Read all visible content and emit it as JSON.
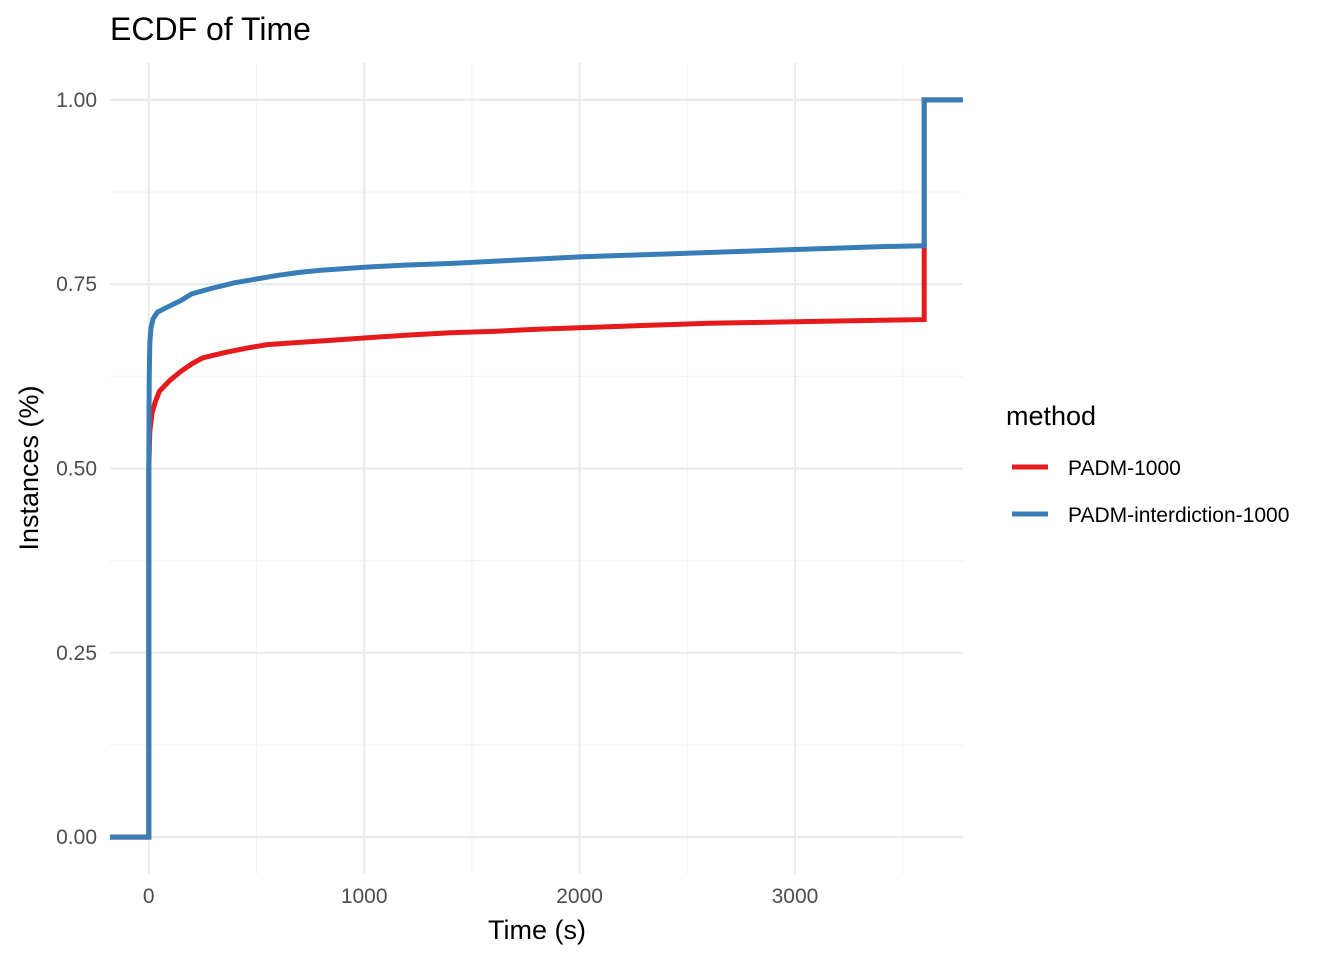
{
  "chart_data": {
    "type": "line",
    "subtype": "ecdf-step",
    "title": "ECDF of Time",
    "xlabel": "Time (s)",
    "ylabel": "Instances (%)",
    "xlim": [
      -180,
      3780
    ],
    "ylim": [
      -0.05,
      1.05
    ],
    "x_ticks": [
      0,
      1000,
      2000,
      3000
    ],
    "x_tick_labels": [
      "0",
      "1000",
      "2000",
      "3000"
    ],
    "y_ticks": [
      0,
      0.25,
      0.5,
      0.75,
      1.0
    ],
    "y_tick_labels": [
      "0.00",
      "0.25",
      "0.50",
      "0.75",
      "1.00"
    ],
    "grid": true,
    "legend": {
      "title": "method",
      "position": "right"
    },
    "series": [
      {
        "name": "PADM-1000",
        "color": "#e41a1c",
        "points": [
          [
            -180,
            0.0
          ],
          [
            0,
            0.0
          ],
          [
            0,
            0.5
          ],
          [
            5,
            0.55
          ],
          [
            15,
            0.575
          ],
          [
            30,
            0.59
          ],
          [
            50,
            0.605
          ],
          [
            100,
            0.62
          ],
          [
            150,
            0.632
          ],
          [
            200,
            0.642
          ],
          [
            250,
            0.65
          ],
          [
            350,
            0.657
          ],
          [
            450,
            0.663
          ],
          [
            550,
            0.668
          ],
          [
            700,
            0.671
          ],
          [
            850,
            0.674
          ],
          [
            1000,
            0.677
          ],
          [
            1200,
            0.681
          ],
          [
            1400,
            0.684
          ],
          [
            1600,
            0.686
          ],
          [
            1800,
            0.689
          ],
          [
            2000,
            0.691
          ],
          [
            2200,
            0.693
          ],
          [
            2400,
            0.695
          ],
          [
            2600,
            0.697
          ],
          [
            2800,
            0.698
          ],
          [
            3000,
            0.699
          ],
          [
            3200,
            0.7
          ],
          [
            3400,
            0.701
          ],
          [
            3600,
            0.702
          ],
          [
            3600,
            1.0
          ],
          [
            3780,
            1.0
          ]
        ]
      },
      {
        "name": "PADM-interdiction-1000",
        "color": "#377eb8",
        "points": [
          [
            -180,
            0.0
          ],
          [
            0,
            0.0
          ],
          [
            0,
            0.5
          ],
          [
            2,
            0.62
          ],
          [
            5,
            0.67
          ],
          [
            10,
            0.69
          ],
          [
            20,
            0.703
          ],
          [
            40,
            0.712
          ],
          [
            80,
            0.718
          ],
          [
            150,
            0.728
          ],
          [
            200,
            0.737
          ],
          [
            300,
            0.745
          ],
          [
            400,
            0.752
          ],
          [
            500,
            0.757
          ],
          [
            600,
            0.762
          ],
          [
            700,
            0.766
          ],
          [
            800,
            0.769
          ],
          [
            900,
            0.771
          ],
          [
            1000,
            0.773
          ],
          [
            1200,
            0.776
          ],
          [
            1400,
            0.778
          ],
          [
            1600,
            0.781
          ],
          [
            1800,
            0.784
          ],
          [
            2000,
            0.787
          ],
          [
            2200,
            0.789
          ],
          [
            2400,
            0.791
          ],
          [
            2600,
            0.793
          ],
          [
            2800,
            0.795
          ],
          [
            3000,
            0.797
          ],
          [
            3200,
            0.799
          ],
          [
            3400,
            0.801
          ],
          [
            3600,
            0.802
          ],
          [
            3600,
            1.0
          ],
          [
            3780,
            1.0
          ]
        ]
      }
    ]
  }
}
